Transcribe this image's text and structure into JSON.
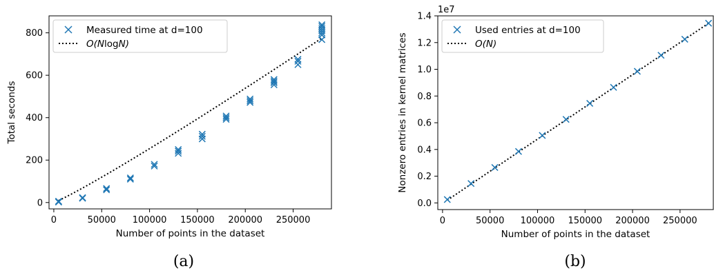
{
  "chart_data": [
    {
      "type": "scatter",
      "caption": "(a)",
      "xlabel": "Number of points in the dataset",
      "ylabel": "Total seconds",
      "xlim": [
        -5000,
        290000
      ],
      "ylim": [
        -30,
        880
      ],
      "xticks": [
        0,
        50000,
        100000,
        150000,
        200000,
        250000
      ],
      "yticks": [
        0,
        200,
        400,
        600,
        800
      ],
      "legend_position": "upper-left",
      "legend": [
        {
          "label": "Measured time at d=100",
          "marker": "x"
        },
        {
          "label_prefix": "O(",
          "label_math": "N",
          "label_mid": "log",
          "label_math2": "N",
          "label_suffix": ")",
          "style": "dotted"
        }
      ],
      "series": [
        {
          "name": "Measured time at d=100",
          "color": "#1f77b4",
          "points": [
            [
              5000,
              2
            ],
            [
              5000,
              4
            ],
            [
              5000,
              6
            ],
            [
              30000,
              20
            ],
            [
              30000,
              23
            ],
            [
              55000,
              60
            ],
            [
              55000,
              66
            ],
            [
              80000,
              110
            ],
            [
              80000,
              116
            ],
            [
              105000,
              172
            ],
            [
              105000,
              180
            ],
            [
              130000,
              232
            ],
            [
              130000,
              242
            ],
            [
              130000,
              250
            ],
            [
              155000,
              300
            ],
            [
              155000,
              312
            ],
            [
              155000,
              322
            ],
            [
              180000,
              392
            ],
            [
              180000,
              400
            ],
            [
              180000,
              408
            ],
            [
              205000,
              472
            ],
            [
              205000,
              480
            ],
            [
              205000,
              488
            ],
            [
              230000,
              555
            ],
            [
              230000,
              565
            ],
            [
              230000,
              572
            ],
            [
              230000,
              580
            ],
            [
              255000,
              650
            ],
            [
              255000,
              666
            ],
            [
              255000,
              675
            ],
            [
              280000,
              768
            ],
            [
              280000,
              790
            ],
            [
              280000,
              800
            ],
            [
              280000,
              810
            ],
            [
              280000,
              820
            ],
            [
              280000,
              830
            ],
            [
              280000,
              838
            ]
          ]
        }
      ],
      "reference_curve": {
        "kind": "nlogn",
        "color": "#000000",
        "y_at_x_max": 775,
        "x_range": [
          5000,
          280000
        ]
      }
    },
    {
      "type": "scatter",
      "caption": "(b)",
      "xlabel": "Number of points in the dataset",
      "ylabel": "Nonzero entries in kernel matrices",
      "axis_multiplier": "1e7",
      "xlim": [
        -5000,
        285000
      ],
      "ylim": [
        -0.05,
        1.4
      ],
      "xticks": [
        0,
        50000,
        100000,
        150000,
        200000,
        250000
      ],
      "yticks": [
        "0.0",
        "0.2",
        "0.4",
        "0.6",
        "0.8",
        "1.0",
        "1.2",
        "1.4"
      ],
      "legend_position": "upper-left",
      "legend": [
        {
          "label": "Used entries at d=100",
          "marker": "x"
        },
        {
          "label_prefix": "O(",
          "label_math": "N",
          "label_mid": "",
          "label_math2": "",
          "label_suffix": ")",
          "style": "dotted"
        }
      ],
      "series": [
        {
          "name": "Used entries at d=100",
          "color": "#1f77b4",
          "points": [
            [
              5000,
              0.025
            ],
            [
              30000,
              0.145
            ],
            [
              55000,
              0.265
            ],
            [
              80000,
              0.385
            ],
            [
              105000,
              0.505
            ],
            [
              130000,
              0.625
            ],
            [
              155000,
              0.745
            ],
            [
              180000,
              0.865
            ],
            [
              205000,
              0.985
            ],
            [
              230000,
              1.105
            ],
            [
              255000,
              1.225
            ],
            [
              280000,
              1.345
            ]
          ]
        }
      ],
      "reference_curve": {
        "kind": "linear",
        "color": "#000000",
        "points": [
          [
            5000,
            0.02
          ],
          [
            280000,
            1.345
          ]
        ]
      }
    }
  ]
}
